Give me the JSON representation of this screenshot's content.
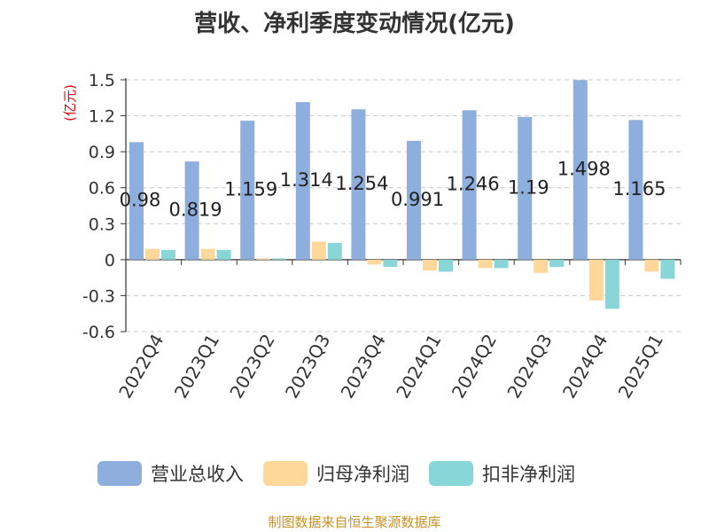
{
  "chart_data": {
    "type": "bar",
    "title": "营收、净利季度变动情况(亿元)",
    "ylabel": "(亿元)",
    "xlabel": "",
    "ylim": [
      -0.6,
      1.5
    ],
    "yticks": [
      "1.5",
      "1.2",
      "0.9",
      "0.6",
      "0.3",
      "0",
      "-0.3",
      "-0.6"
    ],
    "categories": [
      "2022Q4",
      "2023Q1",
      "2023Q2",
      "2023Q3",
      "2023Q4",
      "2024Q1",
      "2024Q2",
      "2024Q3",
      "2024Q4",
      "2025Q1"
    ],
    "series": [
      {
        "name": "营业总收入",
        "values": [
          0.98,
          0.819,
          1.159,
          1.314,
          1.254,
          0.991,
          1.246,
          1.19,
          1.498,
          1.165
        ],
        "labels": [
          "0.98",
          "0.819",
          "1.159",
          "1.314",
          "1.254",
          "0.991",
          "1.246",
          "1.19",
          "1.498",
          "1.165"
        ]
      },
      {
        "name": "归母净利润",
        "values": [
          0.09,
          0.09,
          0.01,
          0.15,
          -0.04,
          -0.09,
          -0.07,
          -0.11,
          -0.34,
          -0.1
        ]
      },
      {
        "name": "扣非净利润",
        "values": [
          0.08,
          0.08,
          0.01,
          0.14,
          -0.06,
          -0.1,
          -0.07,
          -0.06,
          -0.41,
          -0.16
        ]
      }
    ],
    "colors": [
      "#8eaedd",
      "#fdd89a",
      "#88d6d8"
    ],
    "grid": true,
    "legend": "bottom"
  },
  "footer": "制图数据来自恒生聚源数据库"
}
